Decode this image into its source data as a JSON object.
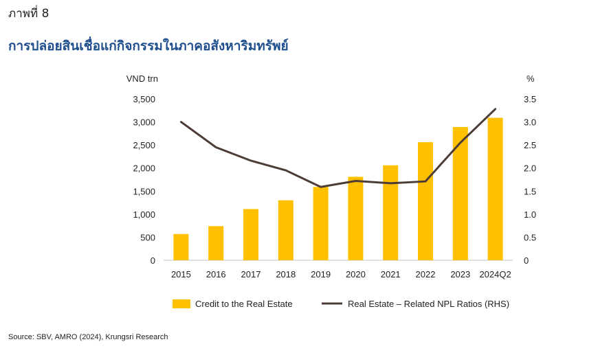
{
  "figure_label": "ภาพที่ 8",
  "title": "การปล่อยสินเชื่อแก่กิจกรรมในภาคอสังหาริมทรัพย์",
  "source": "Source: SBV, AMRO (2024), Krungsri Research",
  "chart_data": {
    "type": "bar",
    "categories": [
      "2015",
      "2016",
      "2017",
      "2018",
      "2019",
      "2020",
      "2021",
      "2022",
      "2023",
      "2024Q2"
    ],
    "series": [
      {
        "name": "Credit to the Real Estate",
        "kind": "bar",
        "axis": "left",
        "color": "#FFC000",
        "values": [
          570,
          740,
          1110,
          1300,
          1590,
          1810,
          2060,
          2560,
          2890,
          3090
        ]
      },
      {
        "name": "Real Estate – Related NPL Ratios (RHS)",
        "kind": "line",
        "axis": "right",
        "color": "#4d3b36",
        "values": [
          3.0,
          2.45,
          2.16,
          1.95,
          1.59,
          1.72,
          1.67,
          1.71,
          2.55,
          3.28
        ]
      }
    ],
    "ylabel_left": "VND trn",
    "ylabel_right": "%",
    "ylim_left": [
      0,
      3500
    ],
    "ylim_right": [
      0,
      3.5
    ],
    "yticks_left": [
      "0",
      "500",
      "1,000",
      "1,500",
      "2,000",
      "2,500",
      "3,000",
      "3,500"
    ],
    "yticks_right": [
      "0",
      "0.5",
      "1.0",
      "1.5",
      "2.0",
      "2.5",
      "3.0",
      "3.5"
    ],
    "grid": false,
    "legend_position": "bottom"
  }
}
